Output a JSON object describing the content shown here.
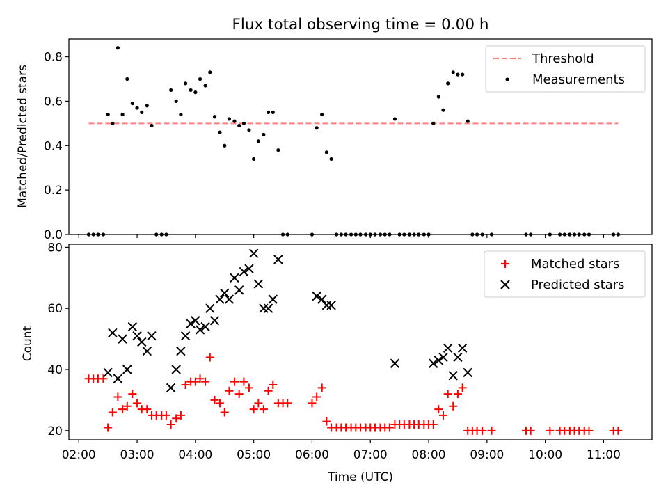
{
  "title": "Flux total observing time = 0.00 h",
  "chart_data": [
    {
      "type": "scatter",
      "ylabel": "Matched/Predicted stars",
      "xlim": [
        1.83,
        11.83
      ],
      "ylim": [
        0,
        0.88
      ],
      "yticks": [
        0.0,
        0.2,
        0.4,
        0.6,
        0.8
      ],
      "ytick_labels": [
        "0.0",
        "0.2",
        "0.4",
        "0.6",
        "0.8"
      ],
      "legend_position": "top-right",
      "series": [
        {
          "name": "Threshold",
          "style": "dashed-line",
          "color": "#ff7f7f",
          "x": [
            2.17,
            11.25
          ],
          "y": [
            0.5,
            0.5
          ]
        },
        {
          "name": "Measurements",
          "style": "dot",
          "color": "#000000",
          "x": [
            2.17,
            2.25,
            2.33,
            2.42,
            2.5,
            2.58,
            2.67,
            2.75,
            2.83,
            2.92,
            3.0,
            3.08,
            3.17,
            3.25,
            3.33,
            3.42,
            3.5,
            3.58,
            3.67,
            3.75,
            3.83,
            3.92,
            4.0,
            4.08,
            4.17,
            4.25,
            4.33,
            4.42,
            4.5,
            4.58,
            4.67,
            4.75,
            4.83,
            4.92,
            5.0,
            5.08,
            5.17,
            5.25,
            5.33,
            5.42,
            5.5,
            5.58,
            6.0,
            6.08,
            6.17,
            6.25,
            6.33,
            6.42,
            6.5,
            6.58,
            6.67,
            6.75,
            6.83,
            6.92,
            7.0,
            7.08,
            7.17,
            7.25,
            7.33,
            7.42,
            7.5,
            7.58,
            7.67,
            7.75,
            7.83,
            7.92,
            8.0,
            8.08,
            8.17,
            8.25,
            8.33,
            8.42,
            8.5,
            8.58,
            8.67,
            8.75,
            8.83,
            8.92,
            9.08,
            9.67,
            9.75,
            10.08,
            10.25,
            10.33,
            10.42,
            10.5,
            10.58,
            10.67,
            10.75,
            11.17,
            11.25
          ],
          "y": [
            0,
            0,
            0,
            0,
            0.54,
            0.5,
            0.84,
            0.54,
            0.7,
            0.59,
            0.57,
            0.55,
            0.58,
            0.49,
            0,
            0,
            0,
            0.65,
            0.6,
            0.54,
            0.68,
            0.65,
            0.64,
            0.7,
            0.67,
            0.73,
            0.53,
            0.46,
            0.4,
            0.52,
            0.51,
            0.49,
            0.5,
            0.47,
            0.34,
            0.42,
            0.45,
            0.55,
            0.55,
            0.38,
            0,
            0,
            0,
            0.48,
            0.54,
            0.37,
            0.34,
            0,
            0,
            0,
            0,
            0,
            0,
            0,
            0,
            0,
            0,
            0,
            0,
            0.52,
            0,
            0,
            0,
            0,
            0,
            0,
            0,
            0.5,
            0.62,
            0.56,
            0.68,
            0.73,
            0.72,
            0.72,
            0.51,
            0,
            0,
            0,
            0,
            0,
            0,
            0,
            0,
            0,
            0,
            0,
            0,
            0,
            0,
            0,
            0
          ]
        }
      ]
    },
    {
      "type": "scatter",
      "xlabel": "Time (UTC)",
      "ylabel": "Count",
      "xlim": [
        1.83,
        11.83
      ],
      "ylim": [
        17,
        81
      ],
      "xticks": [
        2,
        3,
        4,
        5,
        6,
        7,
        8,
        9,
        10,
        11
      ],
      "xtick_labels": [
        "02:00",
        "03:00",
        "04:00",
        "05:00",
        "06:00",
        "07:00",
        "08:00",
        "09:00",
        "10:00",
        "11:00"
      ],
      "yticks": [
        20,
        40,
        60,
        80
      ],
      "ytick_labels": [
        "20",
        "40",
        "60",
        "80"
      ],
      "legend_position": "top-right",
      "series": [
        {
          "name": "Matched stars",
          "style": "plus",
          "color": "#ff0000",
          "x": [
            2.17,
            2.25,
            2.33,
            2.42,
            2.5,
            2.58,
            2.67,
            2.75,
            2.83,
            2.92,
            3.0,
            3.08,
            3.17,
            3.25,
            3.33,
            3.42,
            3.5,
            3.58,
            3.67,
            3.75,
            3.83,
            3.92,
            4.0,
            4.08,
            4.17,
            4.25,
            4.33,
            4.42,
            4.5,
            4.58,
            4.67,
            4.75,
            4.83,
            4.92,
            5.0,
            5.08,
            5.17,
            5.25,
            5.33,
            5.42,
            5.5,
            5.58,
            6.0,
            6.08,
            6.17,
            6.25,
            6.33,
            6.42,
            6.5,
            6.58,
            6.67,
            6.75,
            6.83,
            6.92,
            7.0,
            7.08,
            7.17,
            7.25,
            7.33,
            7.42,
            7.5,
            7.58,
            7.67,
            7.75,
            7.83,
            7.92,
            8.0,
            8.08,
            8.17,
            8.25,
            8.33,
            8.42,
            8.5,
            8.58,
            8.67,
            8.75,
            8.83,
            8.92,
            9.08,
            9.67,
            9.75,
            10.08,
            10.25,
            10.33,
            10.42,
            10.5,
            10.58,
            10.67,
            10.75,
            11.17,
            11.25
          ],
          "y": [
            37,
            37,
            37,
            37,
            21,
            26,
            31,
            27,
            28,
            32,
            29,
            27,
            27,
            25,
            25,
            25,
            25,
            22,
            24,
            25,
            35,
            36,
            36,
            37,
            36,
            44,
            30,
            29,
            26,
            33,
            36,
            32,
            36,
            34,
            27,
            29,
            27,
            33,
            35,
            29,
            29,
            29,
            29,
            31,
            34,
            23,
            21,
            21,
            21,
            21,
            21,
            21,
            21,
            21,
            21,
            21,
            21,
            21,
            21,
            22,
            22,
            22,
            22,
            22,
            22,
            22,
            22,
            22,
            27,
            25,
            32,
            28,
            32,
            34,
            20,
            20,
            20,
            20,
            20,
            20,
            20,
            20,
            20,
            20,
            20,
            20,
            20,
            20,
            20,
            20,
            20
          ]
        },
        {
          "name": "Predicted stars",
          "style": "cross",
          "color": "#000000",
          "x": [
            2.5,
            2.58,
            2.67,
            2.75,
            2.83,
            2.92,
            3.0,
            3.08,
            3.17,
            3.25,
            3.58,
            3.67,
            3.75,
            3.83,
            3.92,
            4.0,
            4.08,
            4.17,
            4.25,
            4.33,
            4.42,
            4.5,
            4.58,
            4.67,
            4.75,
            4.83,
            4.92,
            5.0,
            5.08,
            5.17,
            5.25,
            5.33,
            5.42,
            6.08,
            6.17,
            6.25,
            6.33,
            7.42,
            8.08,
            8.17,
            8.25,
            8.33,
            8.42,
            8.5,
            8.58,
            8.67
          ],
          "y": [
            39,
            52,
            37,
            50,
            40,
            54,
            51,
            49,
            46,
            51,
            34,
            40,
            46,
            51,
            55,
            56,
            53,
            54,
            60,
            56,
            63,
            65,
            63,
            70,
            66,
            72,
            73,
            78,
            68,
            60,
            60,
            63,
            76,
            64,
            63,
            61,
            61,
            42,
            42,
            43,
            44,
            47,
            38,
            44,
            47,
            39
          ]
        }
      ]
    }
  ]
}
